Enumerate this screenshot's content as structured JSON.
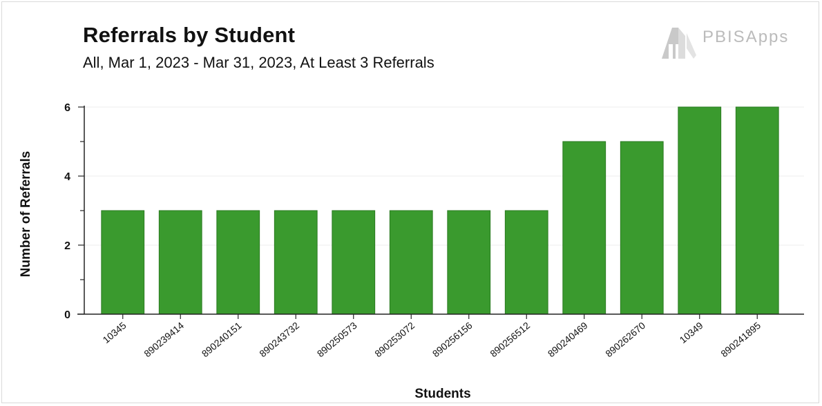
{
  "chart_data": {
    "type": "bar",
    "title": "Referrals by Student",
    "subtitle": "All, Mar 1, 2023 - Mar 31, 2023, At Least 3 Referrals",
    "xlabel": "Students",
    "ylabel": "Number of Referrals",
    "categories": [
      "10345",
      "890239414",
      "890240151",
      "890243732",
      "890250573",
      "890253072",
      "890256156",
      "890256512",
      "890240469",
      "890262670",
      "10349",
      "890241895"
    ],
    "values": [
      3,
      3,
      3,
      3,
      3,
      3,
      3,
      3,
      5,
      5,
      6,
      6
    ],
    "ylim": [
      0,
      6
    ],
    "yticks": [
      0,
      2,
      4,
      6
    ],
    "grid": true,
    "legend": "none",
    "bar_color": "#3a9a2e",
    "bar_border": "#2a7a21"
  },
  "logo": {
    "text": "PBISApps",
    "icon": "pbis-building-icon"
  }
}
